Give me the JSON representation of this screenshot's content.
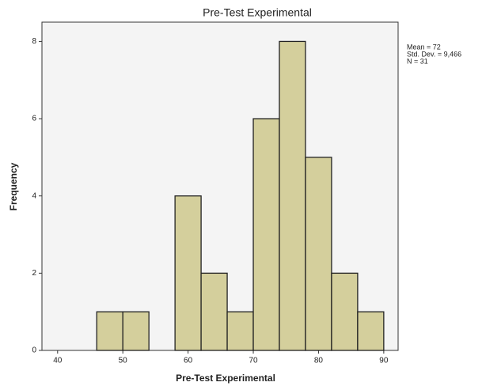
{
  "chart_data": {
    "type": "histogram",
    "title": "Pre-Test Experimental",
    "x_label": "Pre-Test Experimental",
    "y_label": "Frequency",
    "bins": [
      46,
      50,
      54,
      58,
      62,
      66,
      70,
      74,
      78,
      82,
      86,
      90
    ],
    "counts": [
      1,
      1,
      0,
      4,
      2,
      1,
      6,
      8,
      5,
      2,
      1
    ],
    "color": "#d4cf9c",
    "edge_color": "#222222",
    "xlim": [
      37.6,
      92.2
    ],
    "xticks": [
      40,
      50,
      60,
      70,
      80,
      90
    ],
    "ylim": [
      0,
      8.5
    ],
    "yticks": [
      0,
      2,
      4,
      6,
      8
    ],
    "annotations": [
      "Mean = 72",
      "Std. Dev. = 9,466",
      "N = 31"
    ]
  }
}
